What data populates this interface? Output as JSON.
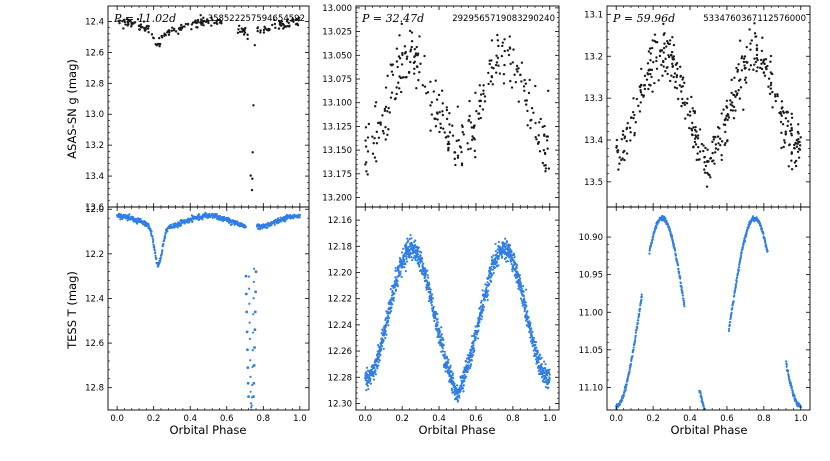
{
  "figure": {
    "y_label_top": "ASAS-SN g (mag)",
    "y_label_bottom": "TESS T (mag)",
    "x_label": "Orbital Phase",
    "colors": {
      "asassn": "#1a1a1a",
      "tess": "#2f7ee6",
      "axis": "#000000"
    }
  },
  "chart_data": [
    {
      "type": "scatter",
      "panel": "top-left",
      "survey": "ASAS-SN",
      "period_label": "P = 11.02d",
      "id_label": "358522257594654592",
      "xlim": [
        -0.05,
        1.05
      ],
      "ylim": [
        13.6,
        12.3
      ],
      "invert_y": true,
      "yticks": [
        12.4,
        12.6,
        12.8,
        13.0,
        13.2,
        13.4,
        13.6
      ],
      "ytick_labels": [
        "12.4",
        "12.6",
        "12.8",
        "13.0",
        "13.2",
        "13.4",
        "13.6"
      ],
      "xticks": [],
      "xtick_labels": [],
      "curve": {
        "kind": "eclipse",
        "base": 12.4,
        "amp": 0.06,
        "phase_peak": 0.0,
        "eclipse_center": 0.735,
        "eclipse_width": 0.012,
        "eclipse_depth": 1.1,
        "dip_center": 0.22,
        "dip_width": 0.03,
        "dip_depth": 0.09
      },
      "n_points": 230,
      "noise": 0.015,
      "gaps": [
        [
          0.58,
          0.66
        ]
      ]
    },
    {
      "type": "scatter",
      "panel": "top-middle",
      "survey": "ASAS-SN",
      "period_label": "P = 32.47d",
      "id_label": "2929565719083290240",
      "xlim": [
        -0.05,
        1.05
      ],
      "ylim": [
        13.21,
        12.998
      ],
      "invert_y": true,
      "yticks": [
        13.0,
        13.025,
        13.05,
        13.075,
        13.1,
        13.125,
        13.15,
        13.175,
        13.2
      ],
      "ytick_labels": [
        "13.000",
        "13.025",
        "13.050",
        "13.075",
        "13.100",
        "13.125",
        "13.150",
        "13.175",
        "13.200"
      ],
      "xticks": [],
      "xtick_labels": [],
      "curve": {
        "kind": "ellipsoidal",
        "mean": 13.1,
        "amp": 0.048,
        "phase_peak": 0.25,
        "dip_phase": 0.5,
        "dip_depth": 0.012
      },
      "n_points": 300,
      "noise": 0.017,
      "gaps": []
    },
    {
      "type": "scatter",
      "panel": "top-right",
      "survey": "ASAS-SN",
      "period_label": "P = 59.96d",
      "id_label": "5334760367112576000",
      "xlim": [
        -0.05,
        1.05
      ],
      "ylim": [
        13.56,
        13.08
      ],
      "invert_y": true,
      "yticks": [
        13.1,
        13.2,
        13.3,
        13.4,
        13.5
      ],
      "ytick_labels": [
        "13.1",
        "13.2",
        "13.3",
        "13.4",
        "13.5"
      ],
      "xticks": [],
      "xtick_labels": [],
      "curve": {
        "kind": "ellipsoidal",
        "mean": 13.31,
        "amp": 0.12,
        "phase_peak": 0.25,
        "dip_phase": 0.5,
        "dip_depth": 0.02
      },
      "n_points": 420,
      "noise": 0.03,
      "gaps": []
    },
    {
      "type": "scatter",
      "panel": "bottom-left",
      "survey": "TESS",
      "xlim": [
        -0.05,
        1.05
      ],
      "ylim": [
        12.9,
        11.99
      ],
      "invert_y": true,
      "yticks": [
        12.0,
        12.2,
        12.4,
        12.6,
        12.8
      ],
      "ytick_labels": [
        "12.0",
        "12.2",
        "12.4",
        "12.6",
        "12.8"
      ],
      "xticks": [
        0.0,
        0.2,
        0.4,
        0.6,
        0.8,
        1.0
      ],
      "xtick_labels": [
        "0.0",
        "0.2",
        "0.4",
        "0.6",
        "0.8",
        "1.0"
      ],
      "curve": {
        "kind": "eclipse",
        "base": 12.03,
        "amp": 0.05,
        "phase_peak": 0.0,
        "eclipse_center": 0.735,
        "eclipse_width": 0.012,
        "eclipse_depth": 0.82,
        "dip_center": 0.225,
        "dip_width": 0.03,
        "dip_depth": 0.17
      },
      "n_points": 700,
      "noise": 0.006,
      "gaps": [
        [
          0.705,
          0.72
        ],
        [
          0.75,
          0.765
        ]
      ],
      "sparse_points": [
        [
          0.705,
          12.3
        ],
        [
          0.707,
          12.38
        ],
        [
          0.709,
          12.46
        ],
        [
          0.711,
          12.55
        ],
        [
          0.713,
          12.63
        ],
        [
          0.715,
          12.71
        ],
        [
          0.717,
          12.78
        ],
        [
          0.719,
          12.84
        ],
        [
          0.746,
          12.84
        ],
        [
          0.748,
          12.78
        ],
        [
          0.75,
          12.7
        ],
        [
          0.752,
          12.62
        ],
        [
          0.754,
          12.54
        ],
        [
          0.756,
          12.46
        ],
        [
          0.758,
          12.37
        ],
        [
          0.76,
          12.28
        ]
      ]
    },
    {
      "type": "scatter",
      "panel": "bottom-middle",
      "survey": "TESS",
      "xlim": [
        -0.05,
        1.05
      ],
      "ylim": [
        12.305,
        12.15
      ],
      "invert_y": true,
      "yticks": [
        12.16,
        12.18,
        12.2,
        12.22,
        12.24,
        12.26,
        12.28,
        12.3
      ],
      "ytick_labels": [
        "12.16",
        "12.18",
        "12.20",
        "12.22",
        "12.24",
        "12.26",
        "12.28",
        "12.30"
      ],
      "xticks": [
        0.0,
        0.2,
        0.4,
        0.6,
        0.8,
        1.0
      ],
      "xtick_labels": [
        "0.0",
        "0.2",
        "0.4",
        "0.6",
        "0.8",
        "1.0"
      ],
      "curve": {
        "kind": "ellipsoidal",
        "mean": 12.232,
        "amp": 0.05,
        "phase_peak": 0.25,
        "dip_phase": 0.5,
        "dip_depth": 0.01
      },
      "n_points": 1400,
      "noise": 0.004,
      "gaps": []
    },
    {
      "type": "scatter",
      "panel": "bottom-right",
      "survey": "TESS",
      "xlim": [
        -0.05,
        1.05
      ],
      "ylim": [
        11.13,
        10.86
      ],
      "invert_y": true,
      "yticks": [
        10.9,
        10.95,
        11.0,
        11.05,
        11.1
      ],
      "ytick_labels": [
        "10.90",
        "10.95",
        "11.00",
        "11.05",
        "11.10"
      ],
      "xticks": [
        0.0,
        0.2,
        0.4,
        0.6,
        0.8,
        1.0
      ],
      "xtick_labels": [
        "0.0",
        "0.2",
        "0.4",
        "0.6",
        "0.8",
        "1.0"
      ],
      "curve": {
        "kind": "ellipsoidal",
        "mean": 11.0,
        "amp": 0.125,
        "phase_peak": 0.25,
        "dip_phase": 0.5,
        "dip_depth": 0.015
      },
      "n_points": 900,
      "noise": 0.0015,
      "gaps": [
        [
          0.14,
          0.18
        ],
        [
          0.37,
          0.45
        ],
        [
          0.52,
          0.61
        ],
        [
          0.82,
          0.92
        ]
      ]
    }
  ]
}
